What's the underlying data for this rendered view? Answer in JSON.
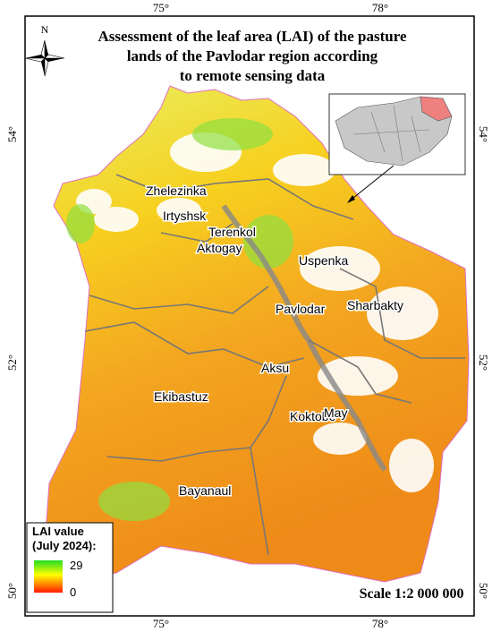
{
  "header": {
    "title": [
      "Assessment of the leaf area (LAI) of the pasture",
      "lands of the Pavlodar region according",
      "to remote sensing data"
    ]
  },
  "compass": {
    "north": "N"
  },
  "grid_labels": {
    "longitudes": [
      "75°",
      "78°"
    ],
    "latitudes": [
      "54°",
      "52°",
      "50°"
    ]
  },
  "districts": [
    "Zhelezinka",
    "Irtyshsk",
    "Terenkol",
    "Aktogay",
    "Uspenka",
    "Pavlodar",
    "Sharbakty",
    "Aksu",
    "Ekibastuz",
    "Koktobe",
    "May",
    "Bayanaul"
  ],
  "legend": {
    "title": [
      "LAI value",
      "(July 2024):"
    ],
    "max": 29,
    "min": 0
  },
  "scale": "Scale 1:2 000 000"
}
